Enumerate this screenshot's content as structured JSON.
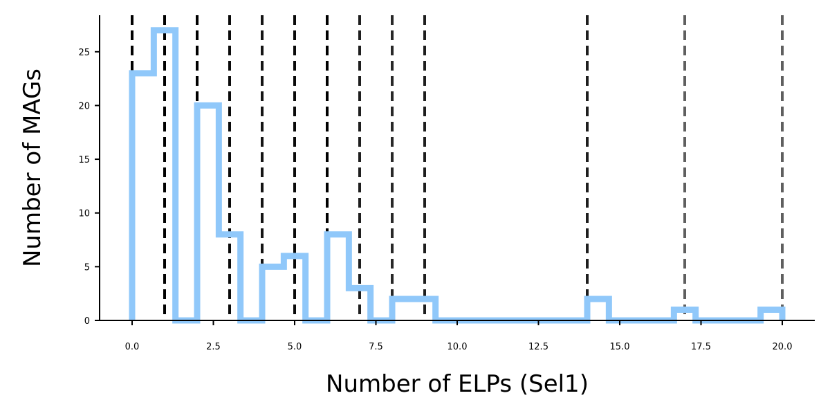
{
  "chart_data": {
    "type": "histogram",
    "xlabel": "Number of ELPs (Sel1)",
    "ylabel": "Number of MAGs",
    "xlim": [
      -1,
      21
    ],
    "ylim": [
      0,
      28.4
    ],
    "x_ticks": [
      "0.0",
      "2.5",
      "5.0",
      "7.5",
      "10.0",
      "12.5",
      "15.0",
      "17.5",
      "20.0"
    ],
    "x_tick_values": [
      0,
      2.5,
      5,
      7.5,
      10,
      12.5,
      15,
      17.5,
      20
    ],
    "y_ticks": [
      "0",
      "5",
      "10",
      "15",
      "20",
      "25"
    ],
    "y_tick_values": [
      0,
      5,
      10,
      15,
      20,
      25
    ],
    "bin_edges": [
      0,
      0.667,
      1.333,
      2,
      2.667,
      3.333,
      4,
      4.667,
      5.333,
      6,
      6.667,
      7.333,
      8,
      8.667,
      9.333,
      10,
      10.667,
      11.333,
      12,
      12.667,
      13.333,
      14,
      14.667,
      15.333,
      16,
      16.667,
      17.333,
      18,
      18.667,
      19.333,
      20
    ],
    "counts": [
      23,
      27,
      0,
      20,
      8,
      0,
      5,
      6,
      0,
      8,
      3,
      0,
      2,
      2,
      0,
      0,
      0,
      0,
      0,
      0,
      0,
      2,
      0,
      0,
      0,
      1,
      0,
      0,
      0,
      1
    ],
    "histogram_color": "#90c8fa",
    "vertical_lines": [
      {
        "x": 0,
        "color": "#000000"
      },
      {
        "x": 1,
        "color": "#000000"
      },
      {
        "x": 2,
        "color": "#000000"
      },
      {
        "x": 3,
        "color": "#0a0a0a"
      },
      {
        "x": 4,
        "color": "#141414"
      },
      {
        "x": 5,
        "color": "#0a0a0a"
      },
      {
        "x": 6,
        "color": "#000000"
      },
      {
        "x": 7,
        "color": "#1e1e1e"
      },
      {
        "x": 8,
        "color": "#282828"
      },
      {
        "x": 9,
        "color": "#1e1e1e"
      },
      {
        "x": 14,
        "color": "#1e1e1e"
      },
      {
        "x": 17,
        "color": "#5f5f5f"
      },
      {
        "x": 20,
        "color": "#5f5f5f"
      }
    ],
    "vertical_line_style": "dashed",
    "grid": false,
    "legend": "none"
  }
}
